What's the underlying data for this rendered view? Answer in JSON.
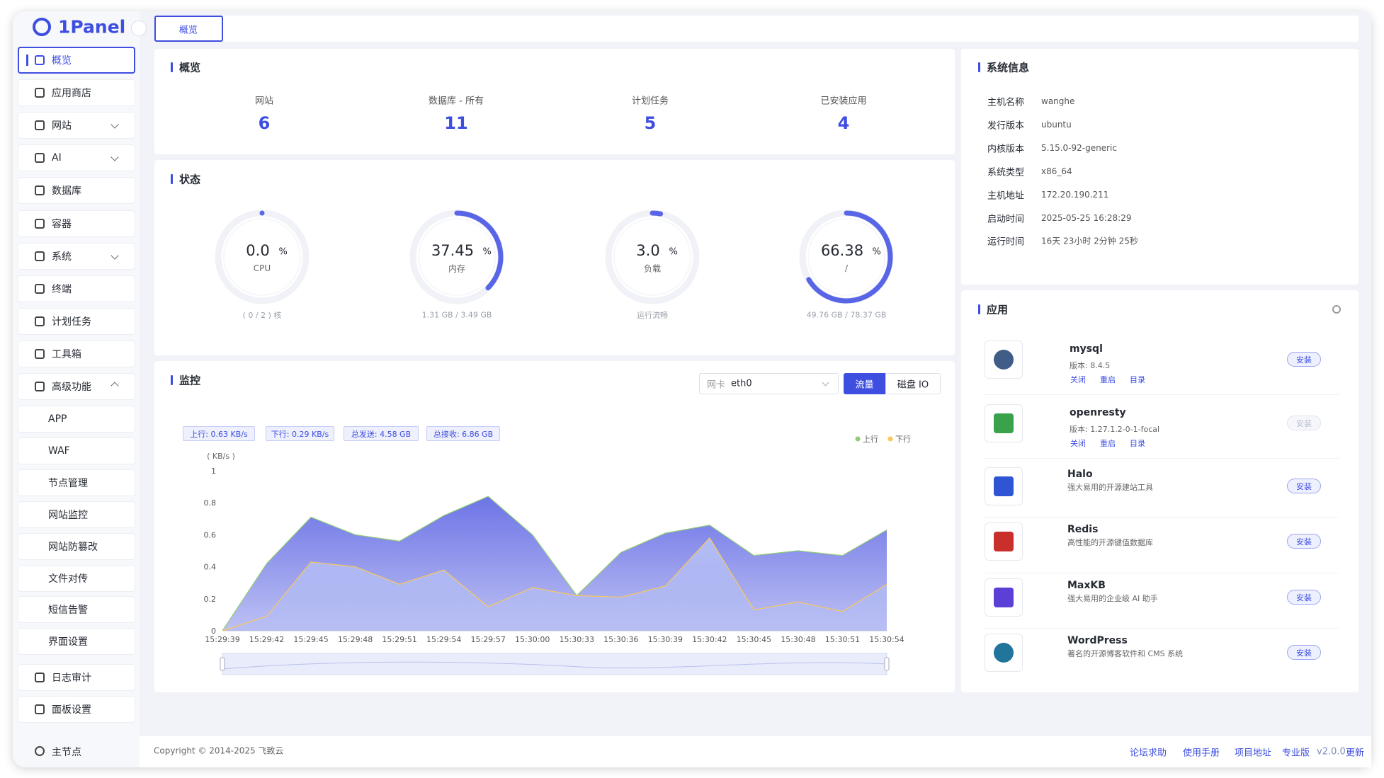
{
  "sidebar": {
    "logo": "1Panel",
    "active_index": 0,
    "items": [
      {
        "label": "概览"
      },
      {
        "label": "应用商店"
      },
      {
        "label": "网站",
        "chevron": "down"
      },
      {
        "label": "AI",
        "chevron": "down"
      },
      {
        "label": "数据库"
      },
      {
        "label": "容器"
      },
      {
        "label": "系统",
        "chevron": "down"
      },
      {
        "label": "终端"
      },
      {
        "label": "计划任务"
      },
      {
        "label": "工具箱"
      },
      {
        "label": "高级功能",
        "chevron": "up"
      }
    ],
    "advanced_items": [
      "APP",
      "WAF",
      "节点管理",
      "网站监控",
      "网站防篡改",
      "文件对传",
      "短信告警",
      "界面设置"
    ],
    "bottom_items": [
      "日志审计",
      "面板设置"
    ],
    "node": "主节点"
  },
  "tabs": [
    "概览"
  ],
  "overview": {
    "title": "概览",
    "stats": [
      {
        "label": "网站",
        "value": 6
      },
      {
        "label": "数据库 - 所有",
        "value": 11
      },
      {
        "label": "计划任务",
        "value": 5
      },
      {
        "label": "已安装应用",
        "value": 4
      }
    ]
  },
  "status": {
    "title": "状态",
    "gauges": [
      {
        "value": 0.0,
        "value_label": "0.0",
        "unit": "%",
        "label": "CPU",
        "detail": "( 0 / 2 ) 核"
      },
      {
        "value": 37.45,
        "value_label": "37.45",
        "unit": "%",
        "label": "内存",
        "detail": "1.31 GB / 3.49 GB"
      },
      {
        "value": 3.0,
        "value_label": "3.0",
        "unit": "%",
        "label": "负载",
        "detail": "运行流畅"
      },
      {
        "value": 66.38,
        "value_label": "66.38",
        "unit": "%",
        "label": "/",
        "detail": "49.76 GB / 78.37 GB"
      }
    ]
  },
  "monitor": {
    "title": "监控",
    "select_label": "网卡",
    "select_value": "eth0",
    "buttons": [
      "流量",
      "磁盘 IO"
    ],
    "active_button": 0,
    "tags": [
      "上行: 0.63 KB/s",
      "下行: 0.29 KB/s",
      "总发送: 4.58 GB",
      "总接收: 6.86 GB"
    ]
  },
  "chart_data": {
    "type": "area",
    "y_label": "( KB/s )",
    "categories": [
      "15:29:39",
      "15:29:42",
      "15:29:45",
      "15:29:48",
      "15:29:51",
      "15:29:54",
      "15:29:57",
      "15:30:00",
      "15:30:33",
      "15:30:36",
      "15:30:39",
      "15:30:42",
      "15:30:45",
      "15:30:48",
      "15:30:51",
      "15:30:54"
    ],
    "series": [
      {
        "name": "上行",
        "color": "#91cc75",
        "fill": "#6d74e6",
        "values": [
          0,
          0.42,
          0.71,
          0.6,
          0.56,
          0.72,
          0.84,
          0.6,
          0.22,
          0.49,
          0.61,
          0.66,
          0.47,
          0.5,
          0.47,
          0.63
        ]
      },
      {
        "name": "下行",
        "color": "#fac858",
        "fill": "#b4bef4",
        "values": [
          0,
          0.09,
          0.43,
          0.4,
          0.29,
          0.38,
          0.15,
          0.27,
          0.22,
          0.21,
          0.28,
          0.58,
          0.13,
          0.18,
          0.12,
          0.29
        ]
      }
    ],
    "ylim": [
      0,
      1
    ],
    "yticks": [
      0,
      0.2,
      0.4,
      0.6,
      0.8,
      1
    ],
    "grid": false,
    "legend": "top-right"
  },
  "system_info": {
    "title": "系统信息",
    "rows": [
      [
        "主机名称",
        "wanghe"
      ],
      [
        "发行版本",
        "ubuntu"
      ],
      [
        "内核版本",
        "5.15.0-92-generic"
      ],
      [
        "系统类型",
        "x86_64"
      ],
      [
        "主机地址",
        "172.20.190.211"
      ],
      [
        "启动时间",
        "2025-05-25 16:28:29"
      ],
      [
        "运行时间",
        "16天 23小时 2分钟 25秒"
      ]
    ]
  },
  "apps": {
    "title": "应用",
    "items": [
      {
        "name": "mysql",
        "version": "版本: 8.4.5",
        "actions": [
          "关闭",
          "重启",
          "目录"
        ],
        "button": "安装",
        "button_enabled": true,
        "icon_color": "#3f5d86"
      },
      {
        "name": "openresty",
        "version": "版本: 1.27.1.2-0-1-focal",
        "actions": [
          "关闭",
          "重启",
          "目录"
        ],
        "button": "安装",
        "button_enabled": false,
        "icon_color": "#3aa24a"
      },
      {
        "name": "Halo",
        "description": "强大易用的开源建站工具",
        "button": "安装",
        "button_enabled": true,
        "icon_color": "#2f55d4"
      },
      {
        "name": "Redis",
        "description": "高性能的开源键值数据库",
        "button": "安装",
        "button_enabled": true,
        "icon_color": "#c9302c"
      },
      {
        "name": "MaxKB",
        "description": "强大易用的企业级 AI 助手",
        "button": "安装",
        "button_enabled": true,
        "icon_color": "#5b3fd6"
      },
      {
        "name": "WordPress",
        "description": "著名的开源博客软件和 CMS 系统",
        "button": "安装",
        "button_enabled": true,
        "icon_color": "#21759b"
      }
    ]
  },
  "footer": {
    "copyright": "Copyright © 2014-2025 飞致云",
    "links": [
      "论坛求助",
      "使用手册",
      "项目地址"
    ],
    "edition": "专业版",
    "version": "v2.0.0",
    "update": "更新"
  }
}
